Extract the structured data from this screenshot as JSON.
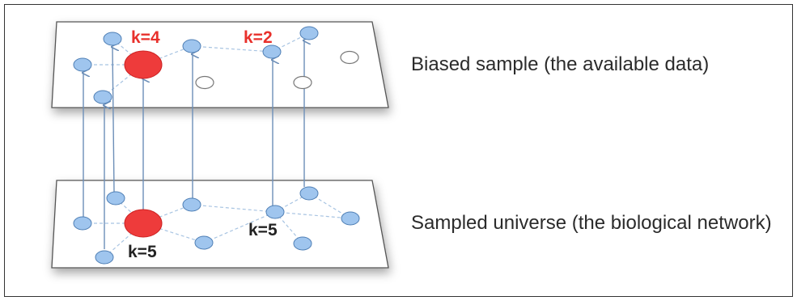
{
  "captions": {
    "top_layer": "Biased sample (the available data)",
    "bottom_layer": "Sampled universe (the biological network)"
  },
  "labels": {
    "top_hub": "k=4",
    "top_second": "k=2",
    "bottom_hub": "k=5",
    "bottom_second": "k=5"
  },
  "colors": {
    "hub_node": "#ee3b3b",
    "regular_node": "#9fc5ee",
    "node_stroke": "#4f7fb5",
    "edge": "#a8c4e2",
    "arrow": "#6d8fb8",
    "top_label": "#e8302b",
    "bottom_label": "#222222"
  },
  "icons": {
    "arrowhead": "arrow-up-icon"
  }
}
